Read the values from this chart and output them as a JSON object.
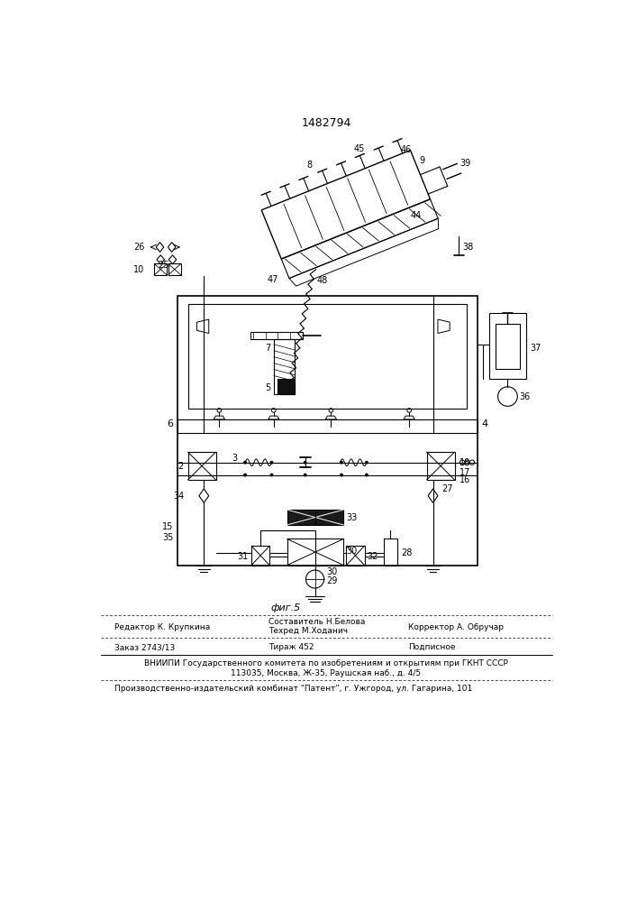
{
  "patent_number": "1482794",
  "figure_label": "фиг.5",
  "bg_color": "#ffffff",
  "line_color": "#000000",
  "editor_line": "Редактор К. Крупкина",
  "composer_line": "Составитель Н.Белова",
  "techred_line": "Техред М.Ходанич",
  "corrector_line": "Корректор А. Обручар",
  "order_line": "Заказ 2743/13",
  "tirazh_line": "Тираж 452",
  "podpisnoe_line": "Подписное",
  "vniishi_line1": "ВНИИПИ Государственного комитета по изобретениям и открытиям при ГКНТ СССР",
  "vniishi_line2": "113035, Москва, Ж-35, Раушская наб., д. 4/5",
  "publisher_line": "Производственно-издательский комбинат \"Патент\", г. Ужгород, ул. Гагарина, 101"
}
